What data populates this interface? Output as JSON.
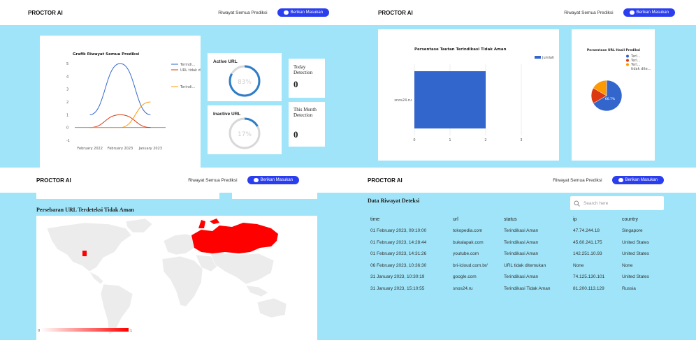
{
  "app": {
    "logo": "PROCTOR AI",
    "history_link": "Riwayat Semua Prediksi",
    "feedback_button": "Berikan Masukan"
  },
  "panel1": {
    "line_chart_title": "Grafik Riwayat Semua Prediksi",
    "legend": [
      "Terindi...",
      "URL tidak ditemu...",
      "Terindi..."
    ],
    "active": {
      "label": "Active URL",
      "percent_text": "83%"
    },
    "inactive": {
      "label": "Inactive URL",
      "percent_text": "17%"
    },
    "today": {
      "label": "Today Detection",
      "value": "0"
    },
    "month": {
      "label": "This Month Detection",
      "value": "0"
    }
  },
  "panel2": {
    "bar_title": "Persentase Tautan Terindikasi Tidak Aman",
    "bar_legend": "Jumlah",
    "pie_title": "Persentase URL Hasil Prediksi",
    "pie_legend": [
      "Terl...",
      "Terl...",
      "Terl...",
      "tidak dite..."
    ],
    "pie_label": "66.7%"
  },
  "panel3": {
    "map_title": "Persebaran URL Terdeteksi Tidak Aman",
    "scale_min": "0",
    "scale_max": "1"
  },
  "panel4": {
    "title": "Data Riwayat Deteksi",
    "search_placeholder": "Search here",
    "columns": [
      "time",
      "url",
      "status",
      "ip",
      "country"
    ],
    "rows": [
      [
        "01 February 2023, 09:10:00",
        "tokopedia.com",
        "Terindikasi Aman",
        "47.74.244.18",
        "Singapore"
      ],
      [
        "01 February 2023, 14:28:44",
        "bukalapak.com",
        "Terindikasi Aman",
        "45.60.241.175",
        "United States"
      ],
      [
        "01 February 2023, 14:31:26",
        "youtube.com",
        "Terindikasi Aman",
        "142.251.10.93",
        "United States"
      ],
      [
        "06 February 2023, 10:36:30",
        "bri-icloud.com.br/",
        "URL tidak ditemukan",
        "None",
        "None"
      ],
      [
        "31 January 2023, 10:30:19",
        "google.com",
        "Terindikasi Aman",
        "74.125.130.101",
        "United States"
      ],
      [
        "31 January 2023, 15:10:55",
        "snos24.ru",
        "Terindikasi Tidak Aman",
        "81.200.113.129",
        "Russia"
      ]
    ]
  },
  "colors": {
    "background": "#9fe4f8",
    "accent": "#2a3ef0",
    "bar": "#3366cc",
    "map_highlight": "#ff0000",
    "pie": [
      "#3366cc",
      "#dc3912",
      "#ff9900"
    ]
  },
  "chart_data": [
    {
      "type": "line",
      "title": "Grafik Riwayat Semua Prediksi",
      "categories": [
        "February 2022",
        "February 2023",
        "January 2023"
      ],
      "ylim": [
        -1,
        5
      ],
      "series": [
        {
          "name": "Terindi...",
          "values": [
            1,
            5,
            1
          ]
        },
        {
          "name": "URL tidak ditemu...",
          "values": [
            0,
            1,
            0
          ]
        },
        {
          "name": "Terindi...",
          "values": [
            0,
            0,
            2
          ]
        }
      ],
      "legend": "right"
    },
    {
      "type": "bar",
      "title": "Persentase Tautan Terindikasi Tidak Aman",
      "categories": [
        "snos24.ru"
      ],
      "series": [
        {
          "name": "Jumlah",
          "values": [
            2
          ]
        }
      ],
      "xlim": [
        0,
        3
      ],
      "legend": "top-right"
    },
    {
      "type": "pie",
      "title": "Persentase URL Hasil Prediksi",
      "slices": [
        {
          "label": "Terl...",
          "value": 66.7
        },
        {
          "label": "Terl...",
          "value": 16.7
        },
        {
          "label": "Terl...",
          "value": 16.7
        }
      ],
      "legend": "right"
    },
    {
      "type": "progress",
      "label": "Active URL",
      "value": 83
    },
    {
      "type": "progress",
      "label": "Inactive URL",
      "value": 17
    }
  ]
}
